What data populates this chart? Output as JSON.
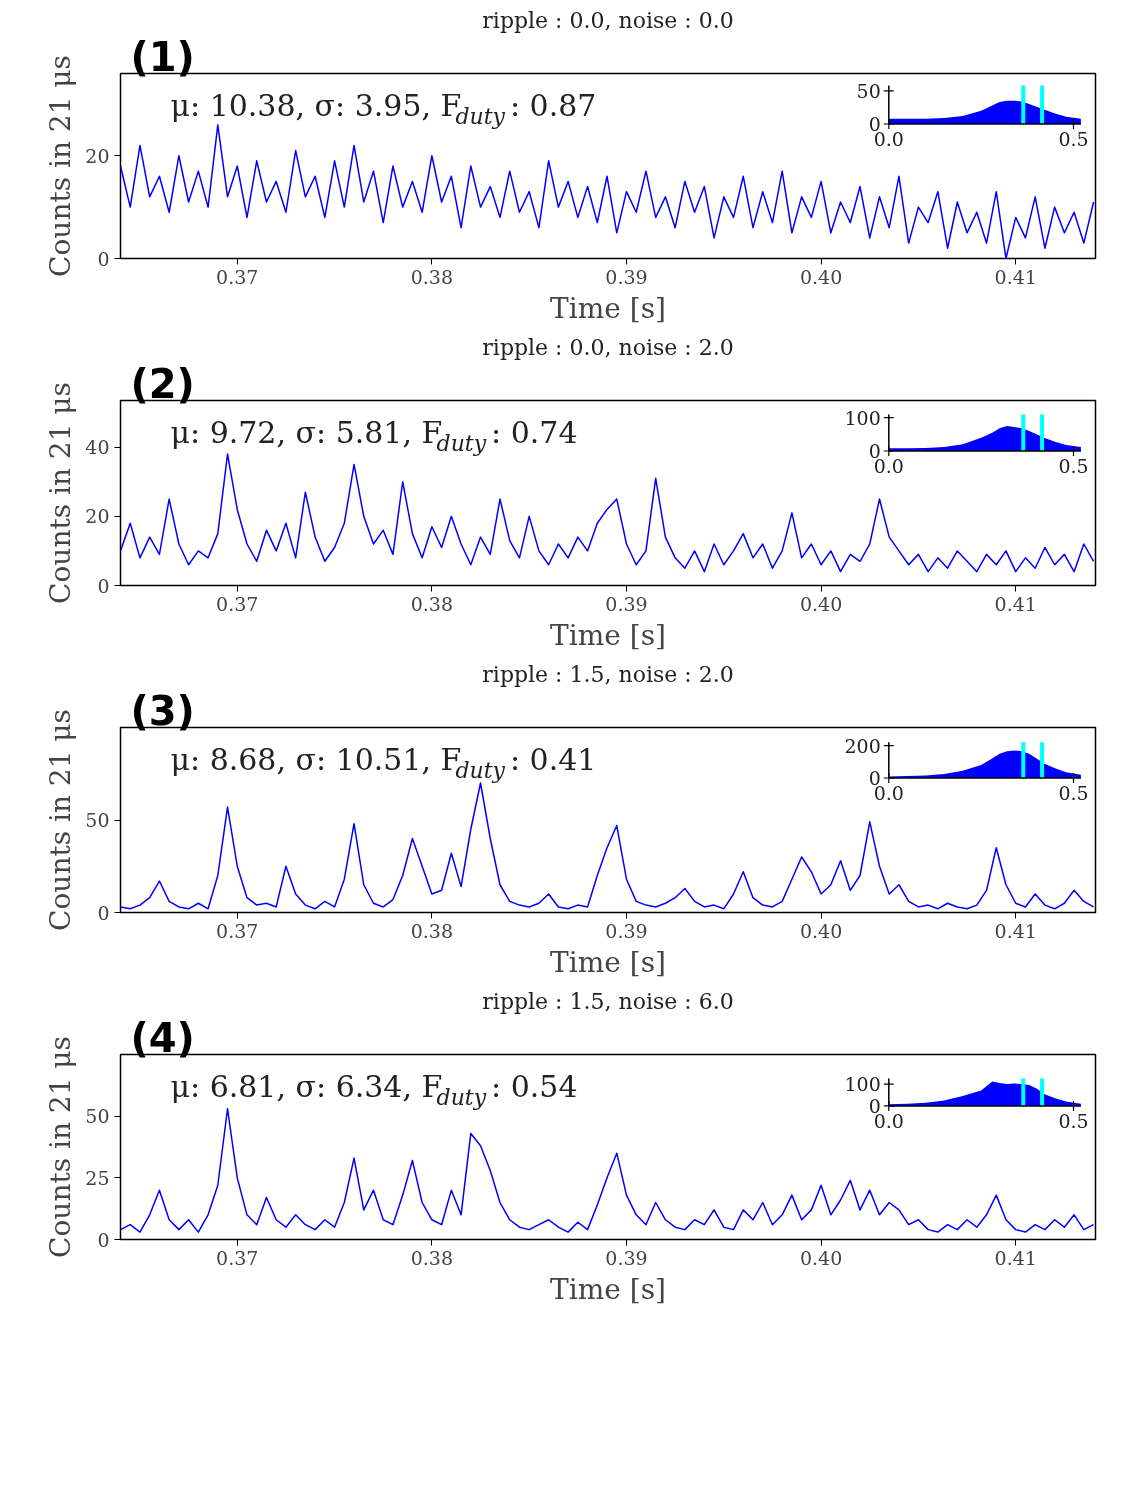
{
  "chart_data": [
    {
      "type": "line",
      "title": "ripple : 0.0, noise : 0.0",
      "xlabel": "Time [s]",
      "ylabel": "Counts in 21 μs",
      "annotations": [
        "(1)",
        "μ: 10.38, σ: 3.95, F$_{duty}$: 0.87"
      ],
      "color": "#0000ff",
      "xlim": [
        0.364,
        0.4141
      ],
      "ylim": [
        0,
        36
      ],
      "xticks": [
        0.37,
        0.38,
        0.39,
        {
          "value": 0.4,
          "label": "0.40"
        },
        0.41
      ],
      "yticks": [
        0,
        20
      ],
      "x": [
        0.364,
        0.3645,
        0.365,
        0.3655,
        0.366,
        0.3665,
        0.367,
        0.3675,
        0.368,
        0.3685,
        0.369,
        0.3695,
        0.37,
        0.3705,
        0.371,
        0.3715,
        0.372,
        0.3725,
        0.373,
        0.3735,
        0.374,
        0.3745,
        0.375,
        0.3755,
        0.376,
        0.3765,
        0.377,
        0.3775,
        0.378,
        0.3785,
        0.379,
        0.3795,
        0.38,
        0.3805,
        0.381,
        0.3815,
        0.382,
        0.3825,
        0.383,
        0.3835,
        0.384,
        0.3845,
        0.385,
        0.3855,
        0.386,
        0.3865,
        0.387,
        0.3875,
        0.388,
        0.3885,
        0.389,
        0.3895,
        0.39,
        0.3905,
        0.391,
        0.3915,
        0.392,
        0.3925,
        0.393,
        0.3935,
        0.394,
        0.3945,
        0.395,
        0.3955,
        0.396,
        0.3965,
        0.397,
        0.3975,
        0.398,
        0.3985,
        0.399,
        0.3995,
        0.4,
        0.4005,
        0.401,
        0.4015,
        0.402,
        0.4025,
        0.403,
        0.4035,
        0.404,
        0.4045,
        0.405,
        0.4055,
        0.406,
        0.4065,
        0.407,
        0.4075,
        0.408,
        0.4085,
        0.409,
        0.4095,
        0.41,
        0.4105,
        0.411,
        0.4115,
        0.412,
        0.4125,
        0.413,
        0.4135,
        0.414
      ],
      "values": [
        18,
        10,
        22,
        12,
        16,
        9,
        20,
        11,
        17,
        10,
        26,
        12,
        18,
        8,
        19,
        11,
        15,
        9,
        21,
        12,
        16,
        8,
        19,
        10,
        22,
        11,
        17,
        7,
        18,
        10,
        15,
        9,
        20,
        11,
        16,
        6,
        18,
        10,
        14,
        8,
        17,
        9,
        13,
        6,
        19,
        10,
        15,
        8,
        14,
        7,
        16,
        5,
        13,
        9,
        17,
        8,
        12,
        6,
        15,
        9,
        14,
        4,
        12,
        8,
        16,
        6,
        13,
        7,
        17,
        5,
        12,
        8,
        15,
        5,
        11,
        7,
        14,
        4,
        12,
        6,
        16,
        3,
        10,
        7,
        13,
        2,
        11,
        5,
        9,
        3,
        13,
        0,
        8,
        4,
        12,
        2,
        10,
        5,
        9,
        3,
        11
      ]
    },
    {
      "type": "area",
      "color": "#0000ff",
      "xlim": [
        0,
        0.52
      ],
      "ylim": [
        0,
        58
      ],
      "xticks": [
        {
          "value": 0,
          "label": "0.0"
        },
        {
          "value": 0.5,
          "label": "0.5"
        }
      ],
      "yticks": [
        0,
        50
      ],
      "x": [
        0,
        0.05,
        0.1,
        0.15,
        0.2,
        0.25,
        0.28,
        0.3,
        0.32,
        0.34,
        0.36,
        0.38,
        0.4,
        0.42,
        0.45,
        0.48,
        0.52
      ],
      "values": [
        8,
        8,
        8,
        9,
        12,
        20,
        28,
        33,
        35,
        35,
        34,
        30,
        26,
        22,
        16,
        11,
        8
      ],
      "ref_lines": [
        {
          "axis": "x",
          "value": 0.364,
          "color": "#00ffff"
        },
        {
          "axis": "x",
          "value": 0.415,
          "color": "#00ffff"
        }
      ]
    },
    {
      "type": "line",
      "title": "ripple : 0.0, noise : 2.0",
      "xlabel": "Time [s]",
      "ylabel": "Counts in 21 μs",
      "annotations": [
        "(2)",
        "μ: 9.72, σ: 5.81, F$_{duty}$: 0.74"
      ],
      "color": "#0000ff",
      "xlim": [
        0.364,
        0.4141
      ],
      "ylim": [
        0,
        53.5
      ],
      "xticks": [
        0.37,
        0.38,
        0.39,
        {
          "value": 0.4,
          "label": "0.40"
        },
        0.41
      ],
      "yticks": [
        0,
        20,
        40
      ],
      "x": [
        0.364,
        0.3645,
        0.365,
        0.3655,
        0.366,
        0.3665,
        0.367,
        0.3675,
        0.368,
        0.3685,
        0.369,
        0.3695,
        0.37,
        0.3705,
        0.371,
        0.3715,
        0.372,
        0.3725,
        0.373,
        0.3735,
        0.374,
        0.3745,
        0.375,
        0.3755,
        0.376,
        0.3765,
        0.377,
        0.3775,
        0.378,
        0.3785,
        0.379,
        0.3795,
        0.38,
        0.3805,
        0.381,
        0.3815,
        0.382,
        0.3825,
        0.383,
        0.3835,
        0.384,
        0.3845,
        0.385,
        0.3855,
        0.386,
        0.3865,
        0.387,
        0.3875,
        0.388,
        0.3885,
        0.389,
        0.3895,
        0.39,
        0.3905,
        0.391,
        0.3915,
        0.392,
        0.3925,
        0.393,
        0.3935,
        0.394,
        0.3945,
        0.395,
        0.3955,
        0.396,
        0.3965,
        0.397,
        0.3975,
        0.398,
        0.3985,
        0.399,
        0.3995,
        0.4,
        0.4005,
        0.401,
        0.4015,
        0.402,
        0.4025,
        0.403,
        0.4035,
        0.404,
        0.4045,
        0.405,
        0.4055,
        0.406,
        0.4065,
        0.407,
        0.4075,
        0.408,
        0.4085,
        0.409,
        0.4095,
        0.41,
        0.4105,
        0.411,
        0.4115,
        0.412,
        0.4125,
        0.413,
        0.4135,
        0.414
      ],
      "values": [
        10,
        18,
        8,
        14,
        9,
        25,
        12,
        6,
        10,
        8,
        15,
        38,
        22,
        12,
        7,
        16,
        10,
        18,
        8,
        27,
        14,
        7,
        11,
        18,
        35,
        20,
        12,
        16,
        9,
        30,
        15,
        8,
        17,
        11,
        20,
        12,
        6,
        14,
        9,
        25,
        13,
        8,
        20,
        10,
        6,
        12,
        8,
        14,
        10,
        18,
        22,
        25,
        12,
        6,
        10,
        31,
        14,
        8,
        5,
        10,
        4,
        12,
        6,
        10,
        15,
        8,
        12,
        5,
        10,
        21,
        8,
        12,
        6,
        10,
        4,
        9,
        7,
        12,
        25,
        14,
        10,
        6,
        9,
        4,
        8,
        5,
        10,
        7,
        4,
        9,
        6,
        10,
        4,
        8,
        5,
        11,
        6,
        9,
        4,
        12,
        7
      ]
    },
    {
      "type": "area",
      "color": "#0000ff",
      "xlim": [
        0,
        0.52
      ],
      "ylim": [
        0,
        110
      ],
      "xticks": [
        {
          "value": 0,
          "label": "0.0"
        },
        {
          "value": 0.5,
          "label": "0.5"
        }
      ],
      "yticks": [
        0,
        100
      ],
      "x": [
        0,
        0.05,
        0.1,
        0.15,
        0.2,
        0.25,
        0.28,
        0.3,
        0.32,
        0.34,
        0.36,
        0.38,
        0.4,
        0.42,
        0.45,
        0.48,
        0.52
      ],
      "values": [
        8,
        8,
        9,
        12,
        20,
        40,
        55,
        68,
        75,
        72,
        68,
        60,
        50,
        40,
        28,
        18,
        12
      ],
      "ref_lines": [
        {
          "axis": "x",
          "value": 0.364,
          "color": "#00ffff"
        },
        {
          "axis": "x",
          "value": 0.415,
          "color": "#00ffff"
        }
      ]
    },
    {
      "type": "line",
      "title": "ripple : 1.5, noise : 2.0",
      "xlabel": "Time [s]",
      "ylabel": "Counts in 21 μs",
      "annotations": [
        "(3)",
        "μ: 8.68, σ: 10.51, F$_{duty}$: 0.41"
      ],
      "color": "#0000ff",
      "xlim": [
        0.364,
        0.4141
      ],
      "ylim": [
        0,
        100
      ],
      "xticks": [
        0.37,
        0.38,
        0.39,
        {
          "value": 0.4,
          "label": "0.40"
        },
        0.41
      ],
      "yticks": [
        0,
        50
      ],
      "x": [
        0.364,
        0.3645,
        0.365,
        0.3655,
        0.366,
        0.3665,
        0.367,
        0.3675,
        0.368,
        0.3685,
        0.369,
        0.3695,
        0.37,
        0.3705,
        0.371,
        0.3715,
        0.372,
        0.3725,
        0.373,
        0.3735,
        0.374,
        0.3745,
        0.375,
        0.3755,
        0.376,
        0.3765,
        0.377,
        0.3775,
        0.378,
        0.3785,
        0.379,
        0.3795,
        0.38,
        0.3805,
        0.381,
        0.3815,
        0.382,
        0.3825,
        0.383,
        0.3835,
        0.384,
        0.3845,
        0.385,
        0.3855,
        0.386,
        0.3865,
        0.387,
        0.3875,
        0.388,
        0.3885,
        0.389,
        0.3895,
        0.39,
        0.3905,
        0.391,
        0.3915,
        0.392,
        0.3925,
        0.393,
        0.3935,
        0.394,
        0.3945,
        0.395,
        0.3955,
        0.396,
        0.3965,
        0.397,
        0.3975,
        0.398,
        0.3985,
        0.399,
        0.3995,
        0.4,
        0.4005,
        0.401,
        0.4015,
        0.402,
        0.4025,
        0.403,
        0.4035,
        0.404,
        0.4045,
        0.405,
        0.4055,
        0.406,
        0.4065,
        0.407,
        0.4075,
        0.408,
        0.4085,
        0.409,
        0.4095,
        0.41,
        0.4105,
        0.411,
        0.4115,
        0.412,
        0.4125,
        0.413,
        0.4135,
        0.414
      ],
      "values": [
        3,
        2,
        4,
        8,
        17,
        6,
        3,
        2,
        5,
        2,
        20,
        57,
        25,
        8,
        4,
        5,
        3,
        25,
        10,
        4,
        2,
        6,
        3,
        18,
        48,
        15,
        5,
        3,
        7,
        20,
        40,
        25,
        10,
        12,
        32,
        14,
        45,
        70,
        40,
        15,
        6,
        4,
        3,
        5,
        10,
        3,
        2,
        4,
        3,
        20,
        35,
        47,
        18,
        6,
        4,
        3,
        5,
        8,
        13,
        6,
        3,
        4,
        2,
        10,
        22,
        8,
        4,
        3,
        6,
        18,
        30,
        22,
        10,
        15,
        28,
        12,
        20,
        49,
        25,
        10,
        15,
        6,
        3,
        4,
        2,
        5,
        3,
        2,
        4,
        12,
        35,
        15,
        5,
        3,
        10,
        4,
        2,
        5,
        12,
        6,
        3
      ]
    },
    {
      "type": "area",
      "color": "#0000ff",
      "xlim": [
        0,
        0.52
      ],
      "ylim": [
        0,
        220
      ],
      "xticks": [
        {
          "value": 0,
          "label": "0.0"
        },
        {
          "value": 0.5,
          "label": "0.5"
        }
      ],
      "yticks": [
        0,
        200
      ],
      "x": [
        0,
        0.05,
        0.1,
        0.15,
        0.2,
        0.25,
        0.28,
        0.3,
        0.32,
        0.34,
        0.36,
        0.38,
        0.4,
        0.42,
        0.45,
        0.48,
        0.52
      ],
      "values": [
        10,
        12,
        15,
        25,
        45,
        80,
        120,
        150,
        165,
        170,
        165,
        150,
        120,
        90,
        60,
        35,
        20
      ],
      "ref_lines": [
        {
          "axis": "x",
          "value": 0.364,
          "color": "#00ffff"
        },
        {
          "axis": "x",
          "value": 0.415,
          "color": "#00ffff"
        }
      ]
    },
    {
      "type": "line",
      "title": "ripple : 1.5, noise : 6.0",
      "xlabel": "Time [s]",
      "ylabel": "Counts in 21 μs",
      "annotations": [
        "(4)",
        "μ: 6.81, σ: 6.34, F$_{duty}$: 0.54"
      ],
      "color": "#0000ff",
      "xlim": [
        0.364,
        0.4141
      ],
      "ylim": [
        0,
        75
      ],
      "xticks": [
        0.37,
        0.38,
        0.39,
        {
          "value": 0.4,
          "label": "0.40"
        },
        0.41
      ],
      "yticks": [
        0,
        25,
        50
      ],
      "x": [
        0.364,
        0.3645,
        0.365,
        0.3655,
        0.366,
        0.3665,
        0.367,
        0.3675,
        0.368,
        0.3685,
        0.369,
        0.3695,
        0.37,
        0.3705,
        0.371,
        0.3715,
        0.372,
        0.3725,
        0.373,
        0.3735,
        0.374,
        0.3745,
        0.375,
        0.3755,
        0.376,
        0.3765,
        0.377,
        0.3775,
        0.378,
        0.3785,
        0.379,
        0.3795,
        0.38,
        0.3805,
        0.381,
        0.3815,
        0.382,
        0.3825,
        0.383,
        0.3835,
        0.384,
        0.3845,
        0.385,
        0.3855,
        0.386,
        0.3865,
        0.387,
        0.3875,
        0.388,
        0.3885,
        0.389,
        0.3895,
        0.39,
        0.3905,
        0.391,
        0.3915,
        0.392,
        0.3925,
        0.393,
        0.3935,
        0.394,
        0.3945,
        0.395,
        0.3955,
        0.396,
        0.3965,
        0.397,
        0.3975,
        0.398,
        0.3985,
        0.399,
        0.3995,
        0.4,
        0.4005,
        0.401,
        0.4015,
        0.402,
        0.4025,
        0.403,
        0.4035,
        0.404,
        0.4045,
        0.405,
        0.4055,
        0.406,
        0.4065,
        0.407,
        0.4075,
        0.408,
        0.4085,
        0.409,
        0.4095,
        0.41,
        0.4105,
        0.411,
        0.4115,
        0.412,
        0.4125,
        0.413,
        0.4135,
        0.414
      ],
      "values": [
        4,
        6,
        3,
        10,
        20,
        8,
        4,
        8,
        3,
        10,
        22,
        53,
        25,
        10,
        6,
        17,
        8,
        5,
        10,
        6,
        4,
        8,
        5,
        15,
        33,
        12,
        20,
        8,
        6,
        18,
        32,
        15,
        8,
        6,
        20,
        10,
        43,
        38,
        28,
        15,
        8,
        5,
        4,
        6,
        8,
        5,
        3,
        7,
        4,
        14,
        25,
        35,
        18,
        10,
        6,
        15,
        8,
        5,
        4,
        8,
        6,
        12,
        5,
        4,
        12,
        8,
        15,
        6,
        10,
        18,
        8,
        12,
        22,
        10,
        16,
        24,
        12,
        20,
        10,
        15,
        12,
        6,
        8,
        4,
        3,
        6,
        4,
        8,
        5,
        10,
        18,
        8,
        4,
        3,
        6,
        4,
        8,
        5,
        10,
        4,
        6
      ]
    },
    {
      "type": "area",
      "color": "#0000ff",
      "xlim": [
        0,
        0.52
      ],
      "ylim": [
        0,
        125
      ],
      "xticks": [
        {
          "value": 0,
          "label": "0.0"
        },
        {
          "value": 0.5,
          "label": "0.5"
        }
      ],
      "yticks": [
        0,
        100
      ],
      "x": [
        0,
        0.05,
        0.1,
        0.15,
        0.2,
        0.25,
        0.28,
        0.3,
        0.32,
        0.34,
        0.36,
        0.38,
        0.4,
        0.42,
        0.45,
        0.48,
        0.52
      ],
      "values": [
        8,
        10,
        14,
        25,
        45,
        70,
        112,
        105,
        100,
        102,
        100,
        95,
        80,
        55,
        35,
        20,
        10
      ],
      "ref_lines": [
        {
          "axis": "x",
          "value": 0.364,
          "color": "#00ffff"
        },
        {
          "axis": "x",
          "value": 0.415,
          "color": "#00ffff"
        }
      ]
    }
  ]
}
